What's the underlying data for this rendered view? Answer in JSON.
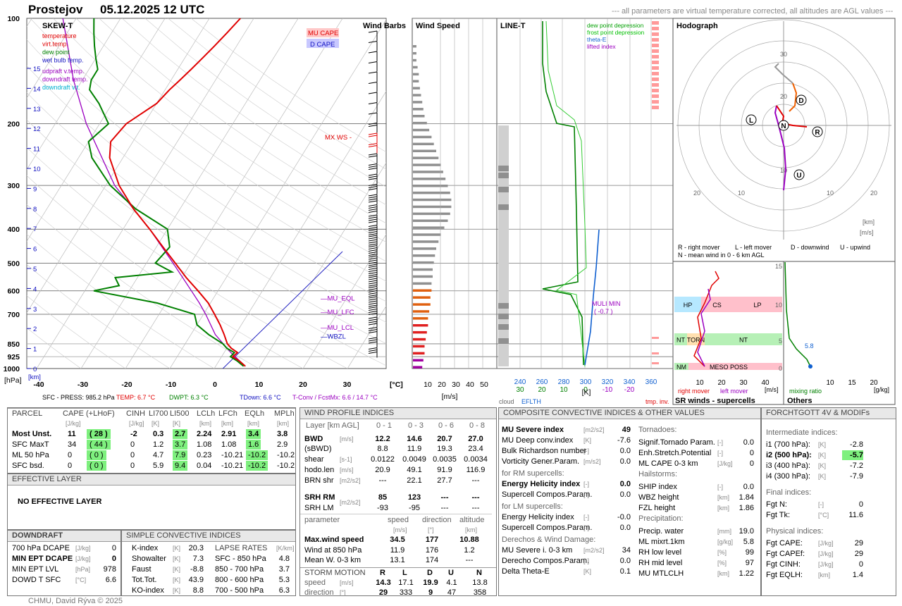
{
  "header": {
    "station": "Prostejov",
    "datetime": "05.12.2025 12 UTC",
    "note": "--- all parameters are virtual temperature corrected, all altitudes are AGL values ---"
  },
  "skewt": {
    "title": "SKEW-T",
    "legend": [
      {
        "label": "temperature",
        "color": "#e00000"
      },
      {
        "label": "virt.temp.",
        "color": "#e00000"
      },
      {
        "label": "dew point",
        "color": "#008000"
      },
      {
        "label": "wet bulb temp.",
        "color": "#1010c0"
      },
      {
        "label": "udpraft v.temp.",
        "color": "#9b00c0"
      },
      {
        "label": "downdraft temp.",
        "color": "#9b00c0"
      },
      {
        "label": "downdraft v.t.",
        "color": "#00b0d0"
      }
    ],
    "mu_cape_label": "MU CAPE",
    "d_cape_label": "D CAPE",
    "mxws_label": "MX WS",
    "level_labels": [
      {
        "label": "MU_EQL",
        "p": 630
      },
      {
        "label": "MU_LFC",
        "p": 690
      },
      {
        "label": "MU_LCL",
        "p": 765
      },
      {
        "label": "WBZL",
        "p": 810
      }
    ],
    "pressure_ticks": [
      "100",
      "200",
      "300",
      "400",
      "500",
      "600",
      "700",
      "850",
      "925",
      "1000"
    ],
    "pressure_values": [
      100,
      200,
      300,
      400,
      500,
      600,
      700,
      850,
      925,
      1000
    ],
    "height_ticks": [
      "15",
      "14",
      "13",
      "12",
      "11",
      "10",
      "9",
      "8",
      "7",
      "6",
      "5",
      "4",
      "3",
      "2",
      "1",
      "0"
    ],
    "temp_ticks": [
      "-40",
      "-30",
      "-20",
      "-10",
      "0",
      "10",
      "20",
      "30"
    ],
    "temp_unit": "[°C]",
    "p_unit": "[hPa]",
    "km_unit": "[km]",
    "footer": [
      {
        "text": "SFC - PRESS: 985.2 hPa",
        "color": "#000"
      },
      {
        "text": "TEMP: 6.7 °C",
        "color": "#e00000"
      },
      {
        "text": "DWPT: 6.3 °C",
        "color": "#008000"
      },
      {
        "text": "TDown: 6.6 °C",
        "color": "#1010c0"
      },
      {
        "text": "T-Conv / FcstMx: 6.6 / 14.7 °C",
        "color": "#9b00c0"
      }
    ]
  },
  "chart_data": {
    "type": "line",
    "title": "SKEW-T",
    "xlabel": "[°C]",
    "ylabel": "[hPa]",
    "ylim": [
      1000,
      100
    ],
    "xlim": [
      -40,
      35
    ],
    "series": [
      {
        "name": "temperature",
        "p": [
          985,
          950,
          925,
          900,
          875,
          850,
          800,
          750,
          700,
          650,
          600,
          550,
          500,
          450,
          400,
          350,
          300,
          250,
          225,
          200,
          175,
          160,
          150,
          140,
          130,
          120,
          110,
          100
        ],
        "t": [
          6.7,
          4.5,
          2.5,
          3.0,
          1.0,
          -0.5,
          -2.5,
          -4.8,
          -7.5,
          -10.5,
          -14.5,
          -19,
          -23.5,
          -28.5,
          -34,
          -40.5,
          -47,
          -53,
          -55,
          -54,
          -50,
          -49,
          -48,
          -47,
          -46,
          -45,
          -44,
          -43
        ]
      },
      {
        "name": "dew point",
        "p": [
          985,
          950,
          925,
          900,
          875,
          850,
          800,
          750,
          700,
          650,
          600,
          580,
          550,
          530,
          500,
          450,
          400,
          350,
          300,
          250,
          225,
          200,
          175,
          160,
          150,
          140,
          130,
          120,
          110,
          100
        ],
        "t": [
          6.3,
          4.0,
          2.0,
          2.3,
          0,
          -1.5,
          -6,
          -10,
          -12,
          -22,
          -38,
          -33,
          -35,
          -23,
          -28,
          -27,
          -30,
          -40,
          -49,
          -57,
          -60,
          -58,
          -63,
          -67,
          -68,
          -68,
          -70,
          -72,
          -74,
          -76
        ]
      },
      {
        "name": "parcel",
        "p": [
          985,
          900,
          800,
          700,
          650,
          600,
          500,
          400,
          300,
          200,
          150,
          100
        ],
        "t": [
          6.7,
          1.5,
          -4.5,
          -9.5,
          -12.5,
          -16,
          -24,
          -34,
          -48,
          -63,
          -72,
          -83
        ]
      }
    ],
    "wind_speed_bars": {
      "unit": "[m/s]",
      "ticks": [
        "10",
        "20",
        "30",
        "40",
        "50"
      ],
      "values": [
        3,
        3,
        3,
        4,
        5,
        5,
        6,
        7,
        8,
        9,
        10,
        12,
        14,
        16,
        18,
        20,
        22,
        24,
        26,
        28,
        30,
        32,
        33,
        33,
        32,
        30,
        27,
        24,
        22,
        20,
        19,
        18,
        17,
        17,
        16,
        16,
        15,
        15,
        14,
        13,
        13,
        12,
        11,
        10,
        10,
        9,
        8
      ]
    },
    "line_t": {
      "title": "LINE-T",
      "legend": [
        {
          "label": "dew point depression",
          "color": "#00a000"
        },
        {
          "label": "frost point depression",
          "color": "#00c000"
        },
        {
          "label": "theta-E",
          "color": "#1060d0"
        },
        {
          "label": "lifted index",
          "color": "#9b00c0"
        }
      ],
      "xticks_blue": [
        "240",
        "260",
        "280",
        "300",
        "320",
        "340",
        "360"
      ],
      "xticks_green": [
        "30",
        "20",
        "10",
        "0"
      ],
      "xticks_purple": [
        "-10",
        "-20"
      ],
      "unit": "[K]",
      "footer_left": "cloud",
      "footer_mid": "EFLTH",
      "footer_right": "tmp. inv.",
      "muli": "MULI MIN",
      "muli_val": "( -0.7 )"
    },
    "hodograph": {
      "title": "Hodograph",
      "rings": [
        "10",
        "20",
        "30"
      ],
      "axis": [
        "20",
        "10",
        "10",
        "20"
      ],
      "unit_km": "[km]",
      "unit_ms": "[m/s]",
      "points": [
        {
          "label": "R",
          "color": "#000"
        },
        {
          "label": "L",
          "color": "#000"
        },
        {
          "label": "D",
          "color": "#000"
        },
        {
          "label": "U",
          "color": "#000"
        },
        {
          "label": "N",
          "color": "#000"
        }
      ],
      "legend1": "R - right mover",
      "legend2": "L - left mover",
      "legend3": "D - downwind",
      "legend4": "U - upwind",
      "legend5": "N - mean wind in 0 - 6 km AGL"
    },
    "sr_winds": {
      "title": "SR winds - supercells",
      "xticks": [
        "10",
        "20",
        "30",
        "40"
      ],
      "yticks": [
        "15",
        "10",
        "5",
        "0"
      ],
      "unit": "[m/s]",
      "bands": [
        {
          "label": "HP",
          "color": "#b6e8ff"
        },
        {
          "label": "CS",
          "color": "#ffc0cb"
        },
        {
          "label": "LP",
          "color": "#ffc0cb"
        },
        {
          "label": "NT",
          "color": "#b6f0b6"
        },
        {
          "label": "TORN",
          "color": "#ffe0b0"
        },
        {
          "label": "NT",
          "color": "#b6f0b6"
        },
        {
          "label": "NM",
          "color": "#b6f0b6"
        },
        {
          "label": "MESO POSS",
          "color": "#ffc0cb"
        }
      ],
      "right_mover": "right mover",
      "left_mover": "left mover"
    },
    "others": {
      "title": "Others",
      "xticks": [
        "10",
        "15",
        "20"
      ],
      "unit": "[g/kg]",
      "label": "mixing ratio",
      "value": "5.8"
    }
  },
  "wind_barbs_title": "Wind Barbs",
  "wind_speed_title": "Wind Speed",
  "parcel": {
    "title": "PARCEL",
    "cols": [
      "CAPE (+LHoF)",
      "CINH",
      "LI700",
      "LI500",
      "LCLh",
      "LFCh",
      "EQLh",
      "MPLh"
    ],
    "units": [
      "[J/kg]",
      "[J/kg]",
      "[K]",
      "[K]",
      "[km]",
      "[km]",
      "[km]",
      "[km]"
    ],
    "rows": [
      {
        "name": "Most Unst.",
        "cape": "11",
        "lhof": "( 28 )",
        "cinh": "-2",
        "li700": "0.3",
        "li500": "2.7",
        "lcl": "2.24",
        "lfc": "2.91",
        "eql": "3.4",
        "mpl": "3.8"
      },
      {
        "name": "SFC MaxT",
        "cape": "34",
        "lhof": "( 44 )",
        "cinh": "0",
        "li700": "1.2",
        "li500": "3.7",
        "lcl": "1.08",
        "lfc": "1.08",
        "eql": "1.6",
        "mpl": "2.9"
      },
      {
        "name": "ML 50 hPa",
        "cape": "0",
        "lhof": "( 0 )",
        "cinh": "0",
        "li700": "4.7",
        "li500": "7.9",
        "lcl": "0.23",
        "lfc": "-10.21",
        "eql": "-10.2",
        "mpl": "-10.2"
      },
      {
        "name": "SFC bsd.",
        "cape": "0",
        "lhof": "( 0 )",
        "cinh": "0",
        "li700": "5.9",
        "li500": "9.4",
        "lcl": "0.04",
        "lfc": "-10.21",
        "eql": "-10.2",
        "mpl": "-10.2"
      }
    ]
  },
  "effective": {
    "title": "EFFECTIVE LAYER",
    "text": "NO EFFECTIVE LAYER"
  },
  "downdraft": {
    "title": "DOWNDRAFT",
    "rows": [
      {
        "label": "700 hPa DCAPE",
        "unit": "[J/kg]",
        "value": "0",
        "bold": false
      },
      {
        "label": "MIN EPT DCAPE",
        "unit": "[J/kg]",
        "value": "0",
        "bold": true
      },
      {
        "label": "MIN EPT LVL",
        "unit": "[hPa]",
        "value": "978",
        "bold": false
      },
      {
        "label": "DOWD T SFC",
        "unit": "[°C]",
        "value": "6.6",
        "bold": false
      }
    ]
  },
  "simple": {
    "title": "SIMPLE CONVECTIVE INDICES",
    "rows": [
      {
        "label": "K-index",
        "unit": "[K]",
        "value": "20.3"
      },
      {
        "label": "Showalter",
        "unit": "[K]",
        "value": "7.3"
      },
      {
        "label": "Faust",
        "unit": "[K]",
        "value": "-8.8"
      },
      {
        "label": "Tot.Tot.",
        "unit": "[K]",
        "value": "43.9"
      },
      {
        "label": "KO-index",
        "unit": "[K]",
        "value": "8.8"
      }
    ],
    "lapse_title": "LAPSE RATES",
    "lapse_unit": "[K/km]",
    "lapse": [
      {
        "label": "SFC - 850 hPa",
        "value": "4.8"
      },
      {
        "label": "850 - 700 hPa",
        "value": "3.7"
      },
      {
        "label": "800 - 600 hPa",
        "value": "5.3"
      },
      {
        "label": "700 - 500 hPa",
        "value": "6.3"
      }
    ]
  },
  "wind_profile": {
    "title": "WIND PROFILE INDICES",
    "layer_label": "Layer [km AGL]",
    "layers": [
      "0 - 1",
      "0 - 3",
      "0 - 6",
      "0 - 8"
    ],
    "rows": [
      {
        "label": "BWD",
        "unit": "[m/s]",
        "values": [
          "12.2",
          "14.6",
          "20.7",
          "27.0"
        ],
        "bold": true
      },
      {
        "label": "(sBWD)",
        "unit": "",
        "values": [
          "8.8",
          "11.9",
          "19.3",
          "23.4"
        ],
        "bold": false
      },
      {
        "label": "shear",
        "unit": "[s-1]",
        "values": [
          "0.0122",
          "0.0049",
          "0.0035",
          "0.0034"
        ],
        "bold": false
      },
      {
        "label": "hodo.len",
        "unit": "[m/s]",
        "values": [
          "20.9",
          "49.1",
          "91.9",
          "116.9"
        ],
        "bold": false
      },
      {
        "label": "BRN shr",
        "unit": "[m2/s2]",
        "values": [
          "---",
          "22.1",
          "27.7",
          "---"
        ],
        "bold": false
      },
      {
        "label": "SRH RM",
        "unit": "[m2/s2]",
        "values": [
          "85",
          "123",
          "---",
          "---"
        ],
        "bold": true
      },
      {
        "label": "SRH LM",
        "unit": "",
        "values": [
          "-93",
          "-95",
          "---",
          "---"
        ],
        "bold": false
      }
    ],
    "param_cols": [
      "parameter",
      "speed",
      "direction",
      "altitude"
    ],
    "param_units": [
      "",
      "[m/s]",
      "[°]",
      "[km]"
    ],
    "params": [
      {
        "label": "Max.wind speed",
        "values": [
          "34.5",
          "177",
          "10.88"
        ],
        "bold": true
      },
      {
        "label": "Wind at 850 hPa",
        "values": [
          "11.9",
          "176",
          "1.2"
        ],
        "bold": false
      },
      {
        "label": "Mean W. 0-3 km",
        "values": [
          "13.1",
          "174",
          "---"
        ],
        "bold": false
      }
    ],
    "storm_title": "STORM MOTION",
    "storm_cols": [
      "R",
      "L",
      "D",
      "U",
      "N"
    ],
    "storm_rows": [
      {
        "label": "speed",
        "unit": "[m/s]",
        "values": [
          "14.3",
          "17.1",
          "19.9",
          "4.1",
          "13.8"
        ]
      },
      {
        "label": "direction",
        "unit": "[°]",
        "values": [
          "29",
          "333",
          "9",
          "47",
          "358"
        ]
      }
    ]
  },
  "composite": {
    "title": "COMPOSITE CONVECTIVE INDICES & OTHER VALUES",
    "left": [
      {
        "type": "row",
        "label": "MU Severe index",
        "unit": "[m2/s2]",
        "value": "49",
        "bold": true
      },
      {
        "type": "row",
        "label": "MU Deep conv.index",
        "unit": "[K]",
        "value": "-7.6"
      },
      {
        "type": "row",
        "label": "Bulk Richardson number",
        "unit": "[-]",
        "value": "0.0"
      },
      {
        "type": "row",
        "label": "Vorticity Gener.Param.",
        "unit": "[m/s2]",
        "value": "0.0"
      },
      {
        "type": "head",
        "label": "for RM supercells:"
      },
      {
        "type": "row",
        "label": "Energy Helicity index",
        "unit": "[-]",
        "value": "0.0",
        "bold": true
      },
      {
        "type": "row",
        "label": "Supercell Compos.Param.",
        "unit": "[-]",
        "value": "0.0"
      },
      {
        "type": "head",
        "label": "for LM supercells:"
      },
      {
        "type": "row",
        "label": "Energy Helicity index",
        "unit": "[-]",
        "value": "-0.0"
      },
      {
        "type": "row",
        "label": "Supercell Compos.Param.",
        "unit": "[-]",
        "value": "0.0"
      },
      {
        "type": "head",
        "label": "Derechos & Wind Damage:"
      },
      {
        "type": "row",
        "label": "MU Severe i. 0-3 km",
        "unit": "[m2/s2]",
        "value": "34"
      },
      {
        "type": "row",
        "label": "Derecho Compos.Param.",
        "unit": "[-]",
        "value": "0.0"
      },
      {
        "type": "row",
        "label": "Delta Theta-E",
        "unit": "[K]",
        "value": "0.1"
      }
    ],
    "right": [
      {
        "type": "head",
        "label": "Tornadoes:"
      },
      {
        "type": "row",
        "label": "Signif.Tornado Param.",
        "unit": "[-]",
        "value": "0.0"
      },
      {
        "type": "row",
        "label": "Enh.Stretch.Potential",
        "unit": "[-]",
        "value": "0"
      },
      {
        "type": "row",
        "label": "ML CAPE 0-3 km",
        "unit": "[J/kg]",
        "value": "0"
      },
      {
        "type": "head",
        "label": "Hailstorms:"
      },
      {
        "type": "row",
        "label": "SHIP index",
        "unit": "[-]",
        "value": "0.0"
      },
      {
        "type": "row",
        "label": "WBZ height",
        "unit": "[km]",
        "value": "1.84"
      },
      {
        "type": "row",
        "label": "FZL height",
        "unit": "[km]",
        "value": "1.86"
      },
      {
        "type": "head",
        "label": "Precipitation:"
      },
      {
        "type": "row",
        "label": "Precip. water",
        "unit": "[mm]",
        "value": "19.0"
      },
      {
        "type": "row",
        "label": "ML mixrt.1km",
        "unit": "[g/kg]",
        "value": "5.8"
      },
      {
        "type": "row",
        "label": "RH low level",
        "unit": "[%]",
        "value": "99"
      },
      {
        "type": "row",
        "label": "RH mid level",
        "unit": "[%]",
        "value": "97"
      },
      {
        "type": "row",
        "label": "MU MTLCLH",
        "unit": "[km]",
        "value": "1.22"
      }
    ]
  },
  "forchtgott": {
    "title": "FORCHTGOTT 4V & MODIFs",
    "sections": [
      {
        "head": "Intermediate indices:",
        "rows": [
          {
            "label": "i1 (700 hPa):",
            "unit": "[K]",
            "value": "-2.8",
            "bold": false,
            "hl": false
          },
          {
            "label": "i2 (500 hPa):",
            "unit": "[K]",
            "value": "-5.7",
            "bold": true,
            "hl": true
          },
          {
            "label": "i3 (400 hPa):",
            "unit": "[K]",
            "value": "-7.2",
            "bold": false,
            "hl": false
          },
          {
            "label": "i4 (300 hPa):",
            "unit": "[K]",
            "value": "-7.9",
            "bold": false,
            "hl": false
          }
        ]
      },
      {
        "head": "Final indices:",
        "rows": [
          {
            "label": "Fgt N:",
            "unit": "[-]",
            "value": "0",
            "bold": false,
            "hl": false
          },
          {
            "label": "Fgt Tk:",
            "unit": "[°C]",
            "value": "11.6",
            "bold": false,
            "hl": false
          }
        ]
      },
      {
        "head": "Physical indices:",
        "rows": [
          {
            "label": "Fgt CAPE:",
            "unit": "[J/kg]",
            "value": "29",
            "bold": false,
            "hl": false
          },
          {
            "label": "Fgt CAPEf:",
            "unit": "[J/kg]",
            "value": "29",
            "bold": false,
            "hl": false
          },
          {
            "label": "Fgt CINH:",
            "unit": "[J/kg]",
            "value": "0",
            "bold": false,
            "hl": false
          },
          {
            "label": "Fgt EQLH:",
            "unit": "[km]",
            "value": "1.4",
            "bold": false,
            "hl": false
          }
        ]
      }
    ]
  },
  "footer": "CHMU, David Rýva © 2025"
}
